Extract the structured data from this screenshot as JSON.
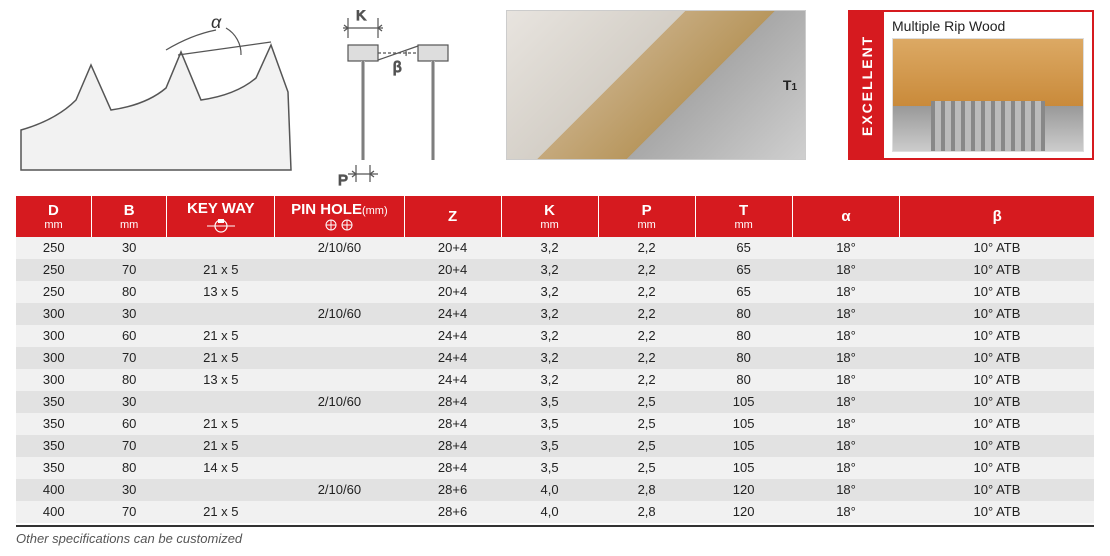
{
  "diagrams": {
    "alpha_label": "α",
    "beta_label": "β",
    "k_label": "K",
    "p_label": "P",
    "t1_label": "T",
    "t1_sub": "1"
  },
  "excellent": {
    "tab": "EXCELLENT",
    "title": "Multiple Rip Wood"
  },
  "colors": {
    "header_bg": "#d61a1f",
    "header_fg": "#ffffff",
    "row_odd": "#f1f1f1",
    "row_even": "#e2e2e2",
    "border": "#333333"
  },
  "table": {
    "columns": [
      {
        "main": "D",
        "sub": "mm",
        "width": "7%"
      },
      {
        "main": "B",
        "sub": "mm",
        "width": "7%"
      },
      {
        "main": "KEY WAY",
        "sub": "icon",
        "width": "10%"
      },
      {
        "main": "PIN HOLE",
        "sub": "(mm)",
        "sub2": "icon",
        "width": "12%"
      },
      {
        "main": "Z",
        "sub": "",
        "width": "9%"
      },
      {
        "main": "K",
        "sub": "mm",
        "width": "9%"
      },
      {
        "main": "P",
        "sub": "mm",
        "width": "9%"
      },
      {
        "main": "T",
        "sub": "mm",
        "width": "9%"
      },
      {
        "main": "α",
        "sub": "",
        "width": "10%"
      },
      {
        "main": "β",
        "sub": "",
        "width": "18%"
      }
    ],
    "rows": [
      [
        "250",
        "30",
        "",
        "2/10/60",
        "20+4",
        "3,2",
        "2,2",
        "65",
        "18°",
        "10° ATB"
      ],
      [
        "250",
        "70",
        "21 x 5",
        "",
        "20+4",
        "3,2",
        "2,2",
        "65",
        "18°",
        "10° ATB"
      ],
      [
        "250",
        "80",
        "13 x 5",
        "",
        "20+4",
        "3,2",
        "2,2",
        "65",
        "18°",
        "10° ATB"
      ],
      [
        "300",
        "30",
        "",
        "2/10/60",
        "24+4",
        "3,2",
        "2,2",
        "80",
        "18°",
        "10° ATB"
      ],
      [
        "300",
        "60",
        "21 x 5",
        "",
        "24+4",
        "3,2",
        "2,2",
        "80",
        "18°",
        "10° ATB"
      ],
      [
        "300",
        "70",
        "21 x 5",
        "",
        "24+4",
        "3,2",
        "2,2",
        "80",
        "18°",
        "10° ATB"
      ],
      [
        "300",
        "80",
        "13 x 5",
        "",
        "24+4",
        "3,2",
        "2,2",
        "80",
        "18°",
        "10° ATB"
      ],
      [
        "350",
        "30",
        "",
        "2/10/60",
        "28+4",
        "3,5",
        "2,5",
        "105",
        "18°",
        "10° ATB"
      ],
      [
        "350",
        "60",
        "21 x 5",
        "",
        "28+4",
        "3,5",
        "2,5",
        "105",
        "18°",
        "10° ATB"
      ],
      [
        "350",
        "70",
        "21 x 5",
        "",
        "28+4",
        "3,5",
        "2,5",
        "105",
        "18°",
        "10° ATB"
      ],
      [
        "350",
        "80",
        "14 x 5",
        "",
        "28+4",
        "3,5",
        "2,5",
        "105",
        "18°",
        "10° ATB"
      ],
      [
        "400",
        "30",
        "",
        "2/10/60",
        "28+6",
        "4,0",
        "2,8",
        "120",
        "18°",
        "10° ATB"
      ],
      [
        "400",
        "70",
        "21 x 5",
        "",
        "28+6",
        "4,0",
        "2,8",
        "120",
        "18°",
        "10° ATB"
      ]
    ]
  },
  "footer": "Other specifications can be customized"
}
